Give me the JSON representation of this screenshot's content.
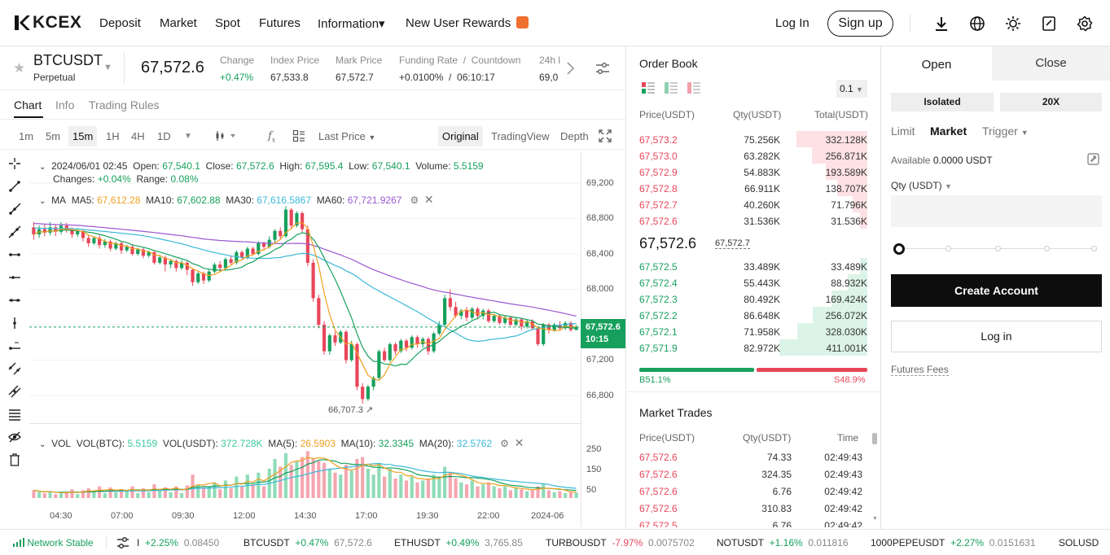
{
  "nav": {
    "logo": "KCEX",
    "items": [
      "Deposit",
      "Market",
      "Spot",
      "Futures",
      "Information▾",
      "New User Rewards"
    ],
    "login": "Log In",
    "signup": "Sign up",
    "icons": [
      "download-icon",
      "globe-icon",
      "theme-sun-icon",
      "notes-icon",
      "settings-icon"
    ]
  },
  "ticker": {
    "symbol": "BTCUSDT",
    "type": "Perpetual",
    "price": "67,572.6",
    "stats": [
      {
        "label": "Change",
        "value": "+0.47%"
      },
      {
        "label": "Index Price",
        "value": "67,533.8"
      },
      {
        "label": "Mark Price",
        "value": "67,572.7"
      },
      {
        "label": "Funding Rate  /  Countdown",
        "value": "+0.0100%  /  06:10:17"
      },
      {
        "label": "24h l",
        "value": "69,0"
      }
    ]
  },
  "tabs": [
    "Chart",
    "Info",
    "Trading Rules"
  ],
  "chart_toolbar": {
    "timeframes": [
      "1m",
      "5m",
      "15m",
      "1H",
      "4H",
      "1D"
    ],
    "price_type": "Last Price",
    "views": [
      "Original",
      "TradingView",
      "Depth"
    ]
  },
  "ohlc": {
    "date": "2024/06/01 02:45",
    "open_label": "Open:",
    "open": "67,540.1",
    "close_label": "Close:",
    "close": "67,572.6",
    "high_label": "High:",
    "high": "67,595.4",
    "low_label": "Low:",
    "low": "67,540.1",
    "volume_label": "Volume:",
    "volume": "5.5159",
    "changes_label": "Changes:",
    "changes": "+0.04%",
    "range_label": "Range:",
    "range": "0.08%"
  },
  "ma": {
    "label": "MA",
    "ma5_label": "MA5:",
    "ma5": "67,612.28",
    "ma10_label": "MA10:",
    "ma10": "67,602.88",
    "ma30_label": "MA30:",
    "ma30": "67,616.5867",
    "ma60_label": "MA60:",
    "ma60": "67,721.9267"
  },
  "vol": {
    "label": "VOL",
    "btc_label": "VOL(BTC):",
    "btc": "5.5159",
    "usdt_label": "VOL(USDT):",
    "usdt": "372.728K",
    "ma5_label": "MA(5):",
    "ma5": "26.5903",
    "ma10_label": "MA(10):",
    "ma10": "32.3345",
    "ma20_label": "MA(20):",
    "ma20": "32.5762"
  },
  "colors": {
    "up": "#17a05d",
    "down": "#e8465a",
    "ma5": "#f0a020",
    "ma10": "#17a05d",
    "ma30": "#3cb8d8",
    "ma60": "#9b59d0"
  },
  "chart_data": {
    "type": "candlestick",
    "y_ticks": [
      "69,200",
      "68,800",
      "68,400",
      "68,000",
      "67,600",
      "67,200",
      "66,800"
    ],
    "x_ticks": [
      "04:30",
      "07:00",
      "09:30",
      "12:00",
      "14:30",
      "17:00",
      "19:30",
      "22:00",
      "2024-06"
    ],
    "vol_ticks": [
      "250",
      "150",
      "50"
    ],
    "last_price_label": "67,572.6",
    "last_price_countdown": "10:15",
    "low_marker": "66,707.3",
    "candles": [
      [
        68700,
        68620,
        68760,
        68560
      ],
      [
        68620,
        68680,
        68720,
        68580
      ],
      [
        68680,
        68640,
        68740,
        68600
      ],
      [
        68640,
        68700,
        68760,
        68610
      ],
      [
        68700,
        68650,
        68730,
        68600
      ],
      [
        68650,
        68720,
        68760,
        68620
      ],
      [
        68720,
        68680,
        68750,
        68640
      ],
      [
        68680,
        68620,
        68700,
        68580
      ],
      [
        68620,
        68660,
        68690,
        68590
      ],
      [
        68660,
        68580,
        68680,
        68540
      ],
      [
        68580,
        68520,
        68610,
        68480
      ],
      [
        68520,
        68580,
        68600,
        68500
      ],
      [
        68580,
        68500,
        68610,
        68460
      ],
      [
        68500,
        68540,
        68570,
        68470
      ],
      [
        68540,
        68460,
        68560,
        68430
      ],
      [
        68460,
        68520,
        68540,
        68440
      ],
      [
        68520,
        68440,
        68540,
        68400
      ],
      [
        68440,
        68480,
        68500,
        68420
      ],
      [
        68480,
        68400,
        68510,
        68380
      ],
      [
        68400,
        68450,
        68470,
        68380
      ],
      [
        68450,
        68380,
        68470,
        68350
      ],
      [
        68380,
        68420,
        68440,
        68360
      ],
      [
        68420,
        68300,
        68440,
        68280
      ],
      [
        68300,
        68360,
        68380,
        68280
      ],
      [
        68360,
        68280,
        68380,
        68200
      ],
      [
        68280,
        68320,
        68340,
        68240
      ],
      [
        68320,
        68240,
        68340,
        68200
      ],
      [
        68240,
        68300,
        68330,
        68220
      ],
      [
        68300,
        68220,
        68320,
        68160
      ],
      [
        68220,
        68080,
        68240,
        68040
      ],
      [
        68080,
        68180,
        68200,
        68060
      ],
      [
        68180,
        68100,
        68200,
        68060
      ],
      [
        68100,
        68200,
        68230,
        68080
      ],
      [
        68200,
        68280,
        68300,
        68180
      ],
      [
        68280,
        68240,
        68320,
        68200
      ],
      [
        68240,
        68340,
        68360,
        68220
      ],
      [
        68340,
        68300,
        68380,
        68280
      ],
      [
        68300,
        68420,
        68440,
        68280
      ],
      [
        68420,
        68360,
        68440,
        68340
      ],
      [
        68360,
        68460,
        68480,
        68340
      ],
      [
        68460,
        68400,
        68480,
        68380
      ],
      [
        68400,
        68520,
        68540,
        68380
      ],
      [
        68520,
        68480,
        68540,
        68440
      ],
      [
        68480,
        68560,
        68600,
        68460
      ],
      [
        68560,
        68660,
        68680,
        68520
      ],
      [
        68660,
        68600,
        68700,
        68560
      ],
      [
        68600,
        68900,
        68940,
        68580
      ],
      [
        68900,
        68720,
        68920,
        68680
      ],
      [
        68720,
        68860,
        68880,
        68700
      ],
      [
        68860,
        68680,
        68880,
        68640
      ],
      [
        68680,
        68300,
        68720,
        68260
      ],
      [
        68300,
        67900,
        68340,
        67860
      ],
      [
        67900,
        67600,
        67940,
        67560
      ],
      [
        67600,
        67300,
        67640,
        67260
      ],
      [
        67300,
        67480,
        67500,
        67260
      ],
      [
        67480,
        67400,
        67520,
        67360
      ],
      [
        67400,
        67520,
        67540,
        67380
      ],
      [
        67520,
        67200,
        67540,
        67160
      ],
      [
        67200,
        67380,
        67420,
        67180
      ],
      [
        67380,
        66900,
        67400,
        66860
      ],
      [
        66900,
        66760,
        66940,
        66707
      ],
      [
        66760,
        66900,
        66920,
        66740
      ],
      [
        66900,
        67000,
        67020,
        66860
      ],
      [
        67000,
        67300,
        67320,
        66980
      ],
      [
        67300,
        67200,
        67340,
        67180
      ],
      [
        67200,
        67380,
        67400,
        67180
      ],
      [
        67380,
        67300,
        67400,
        67260
      ],
      [
        67300,
        67420,
        67440,
        67280
      ],
      [
        67420,
        67340,
        67440,
        67300
      ],
      [
        67340,
        67460,
        67480,
        67320
      ],
      [
        67460,
        67380,
        67480,
        67340
      ],
      [
        67380,
        67440,
        67460,
        67340
      ],
      [
        67440,
        67300,
        67460,
        67260
      ],
      [
        67300,
        67500,
        67520,
        67280
      ],
      [
        67500,
        67600,
        67640,
        67480
      ],
      [
        67600,
        67900,
        67940,
        67580
      ],
      [
        67900,
        67800,
        68000,
        67760
      ],
      [
        67800,
        67700,
        67860,
        67680
      ],
      [
        67700,
        67760,
        67780,
        67660
      ],
      [
        67760,
        67680,
        67800,
        67640
      ],
      [
        67680,
        67780,
        67800,
        67660
      ],
      [
        67780,
        67700,
        67800,
        67660
      ],
      [
        67700,
        67760,
        67780,
        67660
      ],
      [
        67760,
        67640,
        67780,
        67620
      ],
      [
        67640,
        67700,
        67720,
        67620
      ],
      [
        67700,
        67620,
        67720,
        67600
      ],
      [
        67620,
        67680,
        67700,
        67600
      ],
      [
        67680,
        67600,
        67700,
        67580
      ],
      [
        67600,
        67660,
        67680,
        67580
      ],
      [
        67660,
        67580,
        67680,
        67540
      ],
      [
        67580,
        67640,
        67660,
        67560
      ],
      [
        67640,
        67560,
        67660,
        67540
      ],
      [
        67560,
        67380,
        67580,
        67360
      ],
      [
        67380,
        67600,
        67620,
        67360
      ],
      [
        67600,
        67540,
        67620,
        67500
      ],
      [
        67540,
        67600,
        67620,
        67520
      ],
      [
        67600,
        67560,
        67640,
        67540
      ],
      [
        67560,
        67620,
        67640,
        67540
      ],
      [
        67620,
        67540,
        67640,
        67520
      ],
      [
        67540,
        67573,
        67595,
        67540
      ]
    ],
    "volumes": [
      40,
      30,
      25,
      35,
      20,
      30,
      25,
      45,
      20,
      40,
      50,
      30,
      60,
      25,
      55,
      30,
      45,
      35,
      60,
      25,
      50,
      30,
      70,
      40,
      55,
      30,
      60,
      25,
      65,
      120,
      70,
      55,
      60,
      80,
      45,
      90,
      50,
      110,
      60,
      120,
      70,
      130,
      60,
      150,
      200,
      160,
      230,
      170,
      190,
      210,
      240,
      200,
      190,
      180,
      150,
      130,
      120,
      170,
      140,
      200,
      210,
      150,
      120,
      180,
      110,
      150,
      100,
      120,
      90,
      110,
      80,
      90,
      100,
      120,
      110,
      160,
      130,
      100,
      80,
      70,
      90,
      60,
      70,
      80,
      60,
      50,
      60,
      40,
      50,
      45,
      35,
      40,
      60,
      70,
      40,
      30,
      35,
      25,
      30,
      28
    ]
  },
  "orderbook": {
    "title": "Order Book",
    "precision": "0.1",
    "headers": [
      "Price(USDT)",
      "Qty(USDT)",
      "Total(USDT)"
    ],
    "asks": [
      {
        "price": "67,573.2",
        "qty": "75.256K",
        "total": "332.128K",
        "depth": 0.81
      },
      {
        "price": "67,573.0",
        "qty": "63.282K",
        "total": "256.871K",
        "depth": 0.63
      },
      {
        "price": "67,572.9",
        "qty": "54.883K",
        "total": "193.589K",
        "depth": 0.47
      },
      {
        "price": "67,572.8",
        "qty": "66.911K",
        "total": "138.707K",
        "depth": 0.34
      },
      {
        "price": "67,572.7",
        "qty": "40.260K",
        "total": "71.796K",
        "depth": 0.17
      },
      {
        "price": "67,572.6",
        "qty": "31.536K",
        "total": "31.536K",
        "depth": 0.08
      }
    ],
    "mid_price": "67,572.6",
    "mark_price": "67,572.7",
    "bids": [
      {
        "price": "67,572.5",
        "qty": "33.489K",
        "total": "33.489K",
        "depth": 0.08
      },
      {
        "price": "67,572.4",
        "qty": "55.443K",
        "total": "88.932K",
        "depth": 0.22
      },
      {
        "price": "67,572.3",
        "qty": "80.492K",
        "total": "169.424K",
        "depth": 0.41
      },
      {
        "price": "67,572.2",
        "qty": "86.648K",
        "total": "256.072K",
        "depth": 0.62
      },
      {
        "price": "67,572.1",
        "qty": "71.958K",
        "total": "328.030K",
        "depth": 0.8
      },
      {
        "price": "67,571.9",
        "qty": "82.972K",
        "total": "411.001K",
        "depth": 1.0
      }
    ],
    "buy_ratio": "B51.1%",
    "sell_ratio": "S48.9%",
    "buy_fraction": 0.511
  },
  "trades": {
    "title": "Market Trades",
    "headers": [
      "Price(USDT)",
      "Qty(USDT)",
      "Time"
    ],
    "rows": [
      {
        "price": "67,572.6",
        "qty": "74.33",
        "time": "02:49:43"
      },
      {
        "price": "67,572.6",
        "qty": "324.35",
        "time": "02:49:43"
      },
      {
        "price": "67,572.6",
        "qty": "6.76",
        "time": "02:49:42"
      },
      {
        "price": "67,572.6",
        "qty": "310.83",
        "time": "02:49:42"
      },
      {
        "price": "67,572.5",
        "qty": "6.76",
        "time": "02:49:42"
      }
    ]
  },
  "trade_panel": {
    "tabs": [
      "Open",
      "Close"
    ],
    "margin_mode": "Isolated",
    "leverage": "20X",
    "order_types": [
      "Limit",
      "Market",
      "Trigger"
    ],
    "available_label": "Available",
    "available_value": "0.0000 USDT",
    "qty_label": "Qty (USDT)",
    "create_account": "Create Account",
    "login": "Log in",
    "fees": "Futures Fees"
  },
  "bottom": {
    "network": "Network Stable",
    "items": [
      {
        "symbol": "I",
        "change": "+2.25%",
        "price": "0.08450",
        "up": true
      },
      {
        "symbol": "BTCUSDT",
        "change": "+0.47%",
        "price": "67,572.6",
        "up": true
      },
      {
        "symbol": "ETHUSDT",
        "change": "+0.49%",
        "price": "3,765.85",
        "up": true
      },
      {
        "symbol": "TURBOUSDT",
        "change": "-7.97%",
        "price": "0.0075702",
        "up": false
      },
      {
        "symbol": "NOTUSDT",
        "change": "+1.16%",
        "price": "0.011816",
        "up": true
      },
      {
        "symbol": "1000PEPEUSDT",
        "change": "+2.27%",
        "price": "0.0151631",
        "up": true
      },
      {
        "symbol": "SOLUSD",
        "change": "",
        "price": "",
        "up": true
      }
    ]
  }
}
